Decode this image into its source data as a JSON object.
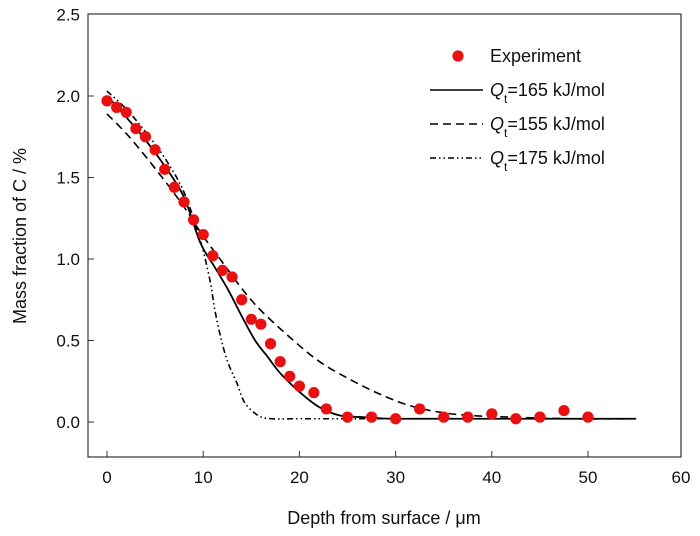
{
  "chart_data": {
    "type": "scatter",
    "title": "",
    "xlabel": "Depth from surface / μm",
    "ylabel": "Mass fraction of C / %",
    "xlim": [
      -2,
      60
    ],
    "ylim": [
      -0.2,
      2.5
    ],
    "xticks": [
      0,
      10,
      20,
      30,
      40,
      50,
      60
    ],
    "xtick_labels": [
      "0",
      "10",
      "20",
      "30",
      "40",
      "50",
      "60"
    ],
    "yticks": [
      0.0,
      0.5,
      1.0,
      1.5,
      2.0,
      2.5
    ],
    "ytick_labels": [
      "0.0",
      "0.5",
      "1.0",
      "1.5",
      "2.0",
      "2.5"
    ],
    "grid": false,
    "legend_position": "top-right",
    "series": [
      {
        "name": "Experiment",
        "kind": "scatter",
        "color": "#e81010",
        "x": [
          0,
          1,
          2,
          3,
          4,
          5,
          6,
          7,
          8,
          9,
          10,
          11,
          12,
          13,
          14,
          15,
          16,
          17,
          18,
          19,
          20,
          21.5,
          22.8,
          25,
          27.5,
          30,
          32.5,
          35,
          37.5,
          40,
          42.5,
          45,
          47.5,
          50
        ],
        "y": [
          1.97,
          1.93,
          1.9,
          1.8,
          1.75,
          1.67,
          1.55,
          1.44,
          1.35,
          1.24,
          1.15,
          1.02,
          0.93,
          0.89,
          0.75,
          0.63,
          0.6,
          0.48,
          0.37,
          0.28,
          0.22,
          0.18,
          0.08,
          0.03,
          0.03,
          0.02,
          0.08,
          0.03,
          0.03,
          0.05,
          0.02,
          0.03,
          0.07,
          0.03
        ]
      },
      {
        "name": "Qt=165 kJ/mol",
        "label_var": "Q",
        "label_sub": "t",
        "label_rest": "=165 kJ/mol",
        "kind": "line",
        "style": "solid",
        "color": "#000000",
        "x": [
          0,
          2,
          4,
          6,
          8,
          9.7,
          11.2,
          12.6,
          14,
          15.4,
          16.7,
          18,
          20.1,
          22.1,
          24.2,
          26.6,
          30,
          40,
          55
        ],
        "y": [
          2.0,
          1.87,
          1.73,
          1.57,
          1.38,
          1.1,
          0.95,
          0.81,
          0.65,
          0.5,
          0.4,
          0.3,
          0.18,
          0.09,
          0.04,
          0.03,
          0.02,
          0.02,
          0.02
        ]
      },
      {
        "name": "Qt=155 kJ/mol",
        "label_var": "Q",
        "label_sub": "t",
        "label_rest": "=155 kJ/mol",
        "kind": "line",
        "style": "dashed",
        "color": "#000000",
        "x": [
          0,
          2,
          4,
          6,
          8,
          10,
          12,
          14,
          15.9,
          19,
          22.1,
          25.3,
          28.4,
          31.5,
          34.6,
          37.7,
          42,
          48,
          55
        ],
        "y": [
          1.89,
          1.77,
          1.63,
          1.48,
          1.32,
          1.14,
          0.98,
          0.82,
          0.69,
          0.52,
          0.37,
          0.26,
          0.17,
          0.1,
          0.06,
          0.04,
          0.03,
          0.02,
          0.02
        ]
      },
      {
        "name": "Qt=175 kJ/mol",
        "label_var": "Q",
        "label_sub": "t",
        "label_rest": "=175 kJ/mol",
        "kind": "line",
        "style": "dashdotdot",
        "color": "#000000",
        "x": [
          0,
          2,
          4,
          6,
          8,
          9.67,
          10.7,
          11.2,
          11.9,
          12.6,
          13.5,
          14.3,
          15.7,
          17.1,
          20,
          30,
          55
        ],
        "y": [
          2.03,
          1.92,
          1.78,
          1.62,
          1.41,
          1.12,
          0.87,
          0.69,
          0.5,
          0.36,
          0.24,
          0.12,
          0.04,
          0.02,
          0.02,
          0.02,
          0.02
        ]
      }
    ]
  }
}
